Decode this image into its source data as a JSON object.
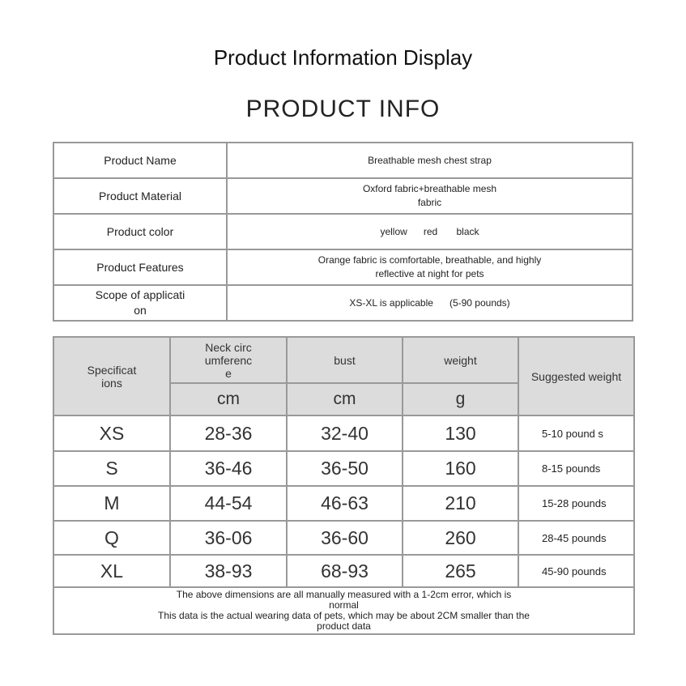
{
  "title": "Product Information Display",
  "subtitle": "PRODUCT INFO",
  "info": [
    {
      "label": "Product Name",
      "value": "Breathable mesh chest strap"
    },
    {
      "label": "Product Material",
      "value": "Oxford fabric+breathable mesh fabric"
    },
    {
      "label": "Product color",
      "value": "yellow      red       black"
    },
    {
      "label": "Product Features",
      "value": "Orange fabric is comfortable, breathable, and highly reflective at night for pets"
    },
    {
      "label": "Scope of applicati on",
      "value": "XS-XL is applicable      (5-90 pounds)"
    }
  ],
  "size_table": {
    "headers": {
      "spec": "Specificat ions",
      "neck": "Neck circ umferenc e",
      "bust": "bust",
      "weight": "weight",
      "suggested": "Suggested weight",
      "neck_unit": "cm",
      "bust_unit": "cm",
      "weight_unit": "g"
    },
    "rows": [
      {
        "size": "XS",
        "neck": "28-36",
        "bust": "32-40",
        "weight": "130",
        "suggested": "5-10 pound s"
      },
      {
        "size": "S",
        "neck": "36-46",
        "bust": "36-50",
        "weight": "160",
        "suggested": "8-15 pounds"
      },
      {
        "size": "M",
        "neck": "44-54",
        "bust": "46-63",
        "weight": "210",
        "suggested": "15-28 pounds"
      },
      {
        "size": "Q",
        "neck": "36-06",
        "bust": "36-60",
        "weight": "260",
        "suggested": "28-45 pounds"
      },
      {
        "size": "XL",
        "neck": "38-93",
        "bust": "68-93",
        "weight": "265",
        "suggested": "45-90 pounds"
      }
    ],
    "note_1": "The above dimensions are all manually measured with a 1-2cm error, which is normal",
    "note_2": "This data is the actual wearing data of pets, which may be about 2CM smaller than the product data"
  }
}
